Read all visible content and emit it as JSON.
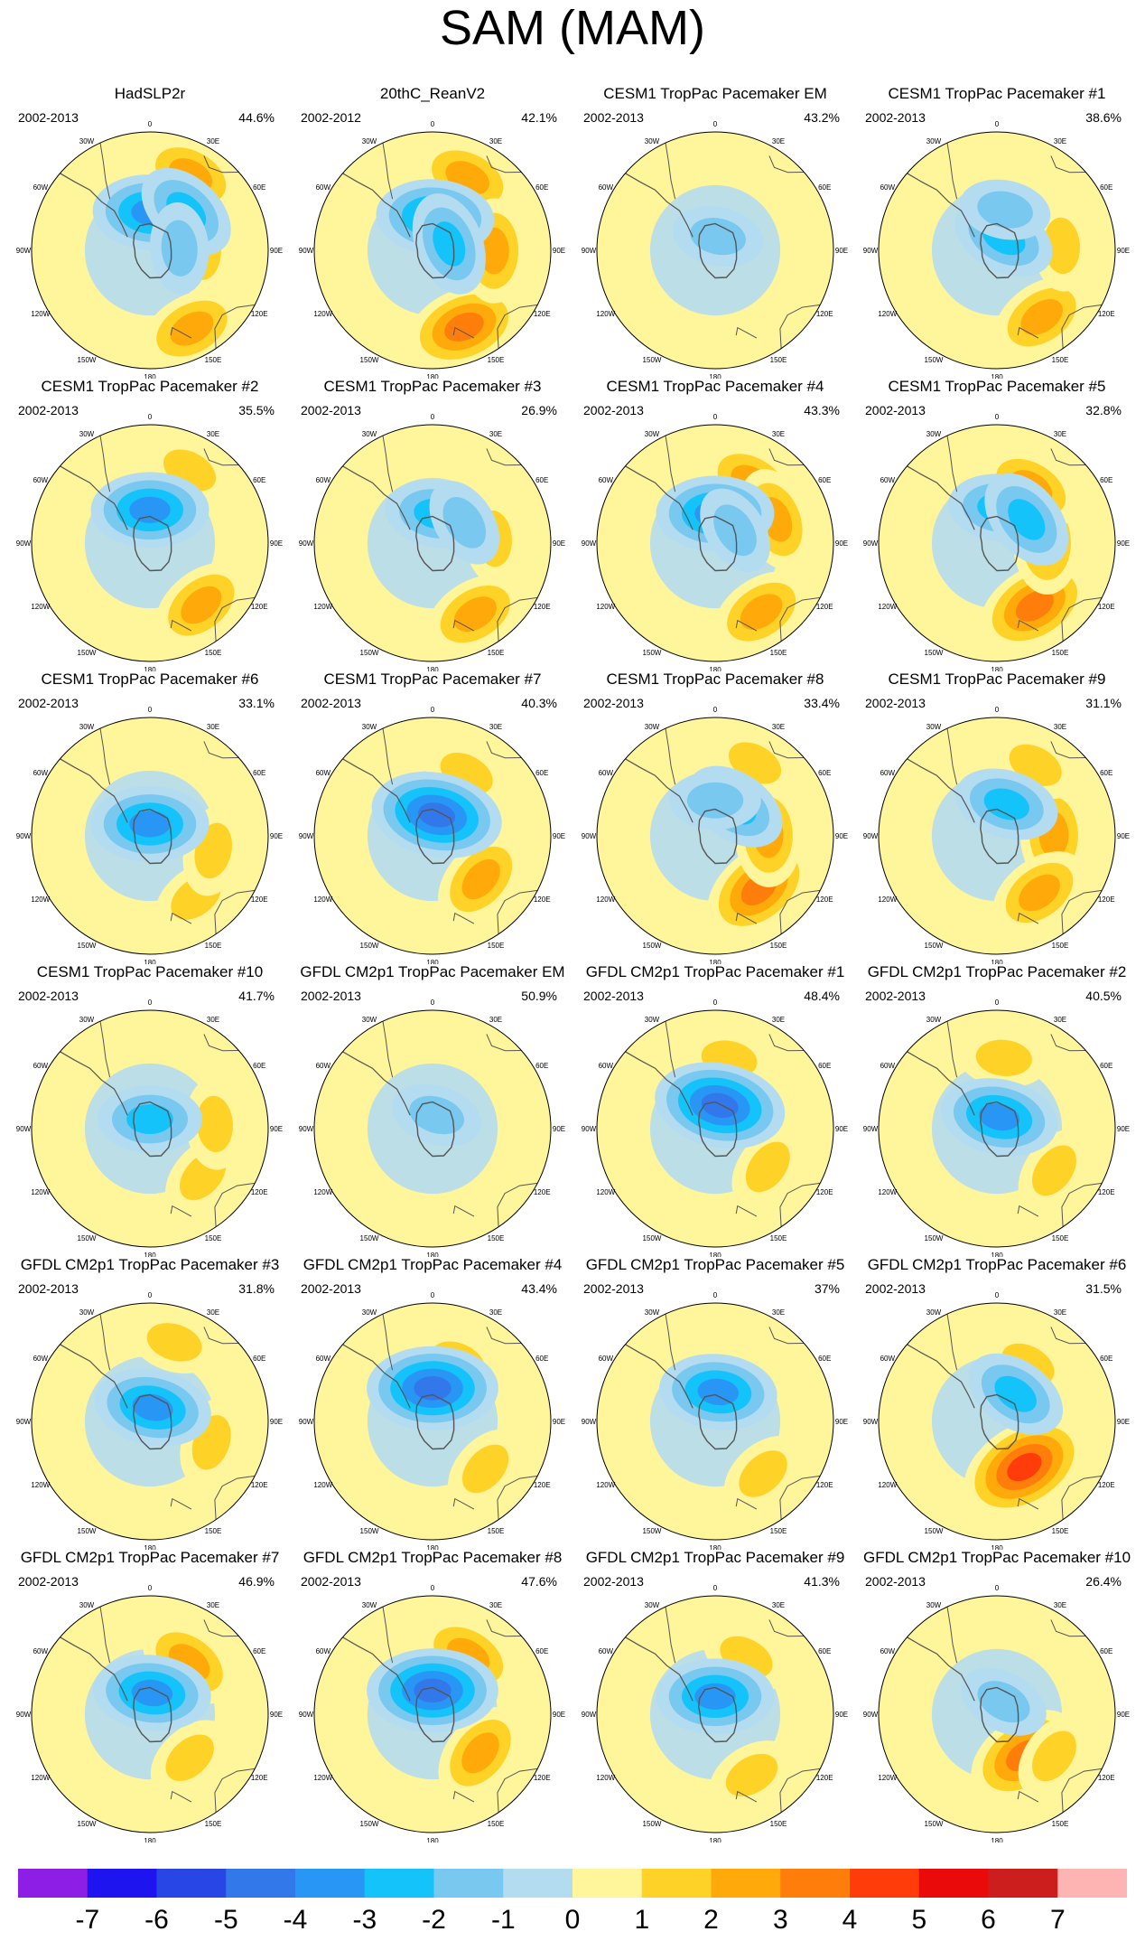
{
  "title": "SAM (MAM)",
  "panels": [
    {
      "name": "HadSLP2r",
      "period": "2002-2013",
      "percent": "44.6%"
    },
    {
      "name": "20thC_ReanV2",
      "period": "2002-2012",
      "percent": "42.1%"
    },
    {
      "name": "CESM1 TropPac Pacemaker EM",
      "period": "2002-2013",
      "percent": "43.2%"
    },
    {
      "name": "CESM1 TropPac Pacemaker #1",
      "period": "2002-2013",
      "percent": "38.6%"
    },
    {
      "name": "CESM1 TropPac Pacemaker #2",
      "period": "2002-2013",
      "percent": "35.5%"
    },
    {
      "name": "CESM1 TropPac Pacemaker #3",
      "period": "2002-2013",
      "percent": "26.9%"
    },
    {
      "name": "CESM1 TropPac Pacemaker #4",
      "period": "2002-2013",
      "percent": "43.3%"
    },
    {
      "name": "CESM1 TropPac Pacemaker #5",
      "period": "2002-2013",
      "percent": "32.8%"
    },
    {
      "name": "CESM1 TropPac Pacemaker #6",
      "period": "2002-2013",
      "percent": "33.1%"
    },
    {
      "name": "CESM1 TropPac Pacemaker #7",
      "period": "2002-2013",
      "percent": "40.3%"
    },
    {
      "name": "CESM1 TropPac Pacemaker #8",
      "period": "2002-2013",
      "percent": "33.4%"
    },
    {
      "name": "CESM1 TropPac Pacemaker #9",
      "period": "2002-2013",
      "percent": "31.1%"
    },
    {
      "name": "CESM1 TropPac Pacemaker #10",
      "period": "2002-2013",
      "percent": "41.7%"
    },
    {
      "name": "GFDL CM2p1 TropPac Pacemaker EM",
      "period": "2002-2013",
      "percent": "50.9%"
    },
    {
      "name": "GFDL CM2p1 TropPac Pacemaker #1",
      "period": "2002-2013",
      "percent": "48.4%"
    },
    {
      "name": "GFDL CM2p1 TropPac Pacemaker #2",
      "period": "2002-2013",
      "percent": "40.5%"
    },
    {
      "name": "GFDL CM2p1 TropPac Pacemaker #3",
      "period": "2002-2013",
      "percent": "31.8%"
    },
    {
      "name": "GFDL CM2p1 TropPac Pacemaker #4",
      "period": "2002-2013",
      "percent": "43.4%"
    },
    {
      "name": "GFDL CM2p1 TropPac Pacemaker #5",
      "period": "2002-2013",
      "percent": "37%"
    },
    {
      "name": "GFDL CM2p1 TropPac Pacemaker #6",
      "period": "2002-2013",
      "percent": "31.5%"
    },
    {
      "name": "GFDL CM2p1 TropPac Pacemaker #7",
      "period": "2002-2013",
      "percent": "46.9%"
    },
    {
      "name": "GFDL CM2p1 TropPac Pacemaker #8",
      "period": "2002-2013",
      "percent": "47.6%"
    },
    {
      "name": "GFDL CM2p1 TropPac Pacemaker #9",
      "period": "2002-2013",
      "percent": "41.3%"
    },
    {
      "name": "GFDL CM2p1 TropPac Pacemaker #10",
      "period": "2002-2013",
      "percent": "26.4%"
    }
  ],
  "lon_labels": [
    "0",
    "30E",
    "60E",
    "90E",
    "120E",
    "150E",
    "180",
    "150W",
    "120W",
    "90W",
    "60W",
    "30W"
  ],
  "colorbar": {
    "labels": [
      "-7",
      "-6",
      "-5",
      "-4",
      "-3",
      "-2",
      "-1",
      "0",
      "1",
      "2",
      "3",
      "4",
      "5",
      "6",
      "7"
    ],
    "colors": [
      "#8c1ee6",
      "#1e14f0",
      "#2846e6",
      "#3278eb",
      "#2896f5",
      "#14c3fa",
      "#78c8f0",
      "#b4dcf0",
      "#fff59b",
      "#ffd228",
      "#ffaa0a",
      "#ff7d0a",
      "#ff3c0a",
      "#eb0a0a",
      "#cd1e1e",
      "#ffb4b4"
    ]
  },
  "patterns": [
    {
      "neg": [
        [
          -4.0,
          0.32,
          0.05
        ],
        [
          -3.0,
          0.45,
          0.75
        ],
        [
          -2.0,
          0.25,
          1.5
        ]
      ],
      "pos": [
        [
          3.0,
          0.72,
          0.5
        ],
        [
          2.5,
          0.75,
          2.65
        ],
        [
          2.0,
          0.45,
          1.6
        ]
      ]
    },
    {
      "neg": [
        [
          -4.0,
          0.28,
          0.08
        ],
        [
          -2.5,
          0.15,
          1.2
        ]
      ],
      "pos": [
        [
          3.5,
          0.7,
          2.75
        ],
        [
          3.0,
          0.68,
          0.45
        ],
        [
          3.0,
          0.52,
          1.58
        ]
      ]
    },
    {
      "neg": [
        [
          -1.7,
          0.12,
          0.2
        ]
      ],
      "pos": [
        [
          0.5,
          0.8,
          2.0
        ]
      ]
    },
    {
      "neg": [
        [
          -3.0,
          0.12,
          0.5
        ],
        [
          -2.0,
          0.35,
          0.2
        ]
      ],
      "pos": [
        [
          2.5,
          0.68,
          2.55
        ],
        [
          2.0,
          0.55,
          1.5
        ]
      ]
    },
    {
      "neg": [
        [
          -3.5,
          0.28,
          0.0
        ]
      ],
      "pos": [
        [
          2.5,
          0.68,
          2.45
        ],
        [
          1.2,
          0.7,
          0.5
        ]
      ]
    },
    {
      "neg": [
        [
          -3.0,
          0.25,
          0.15
        ],
        [
          -1.5,
          0.32,
          1.0
        ]
      ],
      "pos": [
        [
          2.5,
          0.7,
          2.6
        ],
        [
          2.0,
          0.52,
          1.5
        ]
      ]
    },
    {
      "neg": [
        [
          -4.0,
          0.25,
          0.0
        ],
        [
          -2.0,
          0.2,
          1.0
        ]
      ],
      "pos": [
        [
          3.0,
          0.7,
          2.55
        ],
        [
          2.5,
          0.6,
          0.55
        ],
        [
          2.5,
          0.55,
          1.2
        ]
      ]
    },
    {
      "neg": [
        [
          -3.0,
          0.3,
          0.1
        ],
        [
          -2.5,
          0.32,
          0.9
        ]
      ],
      "pos": [
        [
          4.0,
          0.62,
          2.6
        ],
        [
          2.5,
          0.42,
          1.55
        ],
        [
          2.5,
          0.55,
          0.55
        ]
      ]
    },
    {
      "neg": [
        [
          -3.5,
          0.1,
          0.0
        ]
      ],
      "pos": [
        [
          2.0,
          0.65,
          2.5
        ],
        [
          1.5,
          0.55,
          1.8
        ]
      ]
    },
    {
      "neg": [
        [
          -5.0,
          0.18,
          0.2
        ]
      ],
      "pos": [
        [
          3.0,
          0.55,
          2.3
        ],
        [
          1.5,
          0.6,
          0.5
        ]
      ]
    },
    {
      "neg": [
        [
          -3.0,
          0.3,
          0.6
        ],
        [
          -2.0,
          0.3,
          0.0
        ]
      ],
      "pos": [
        [
          3.5,
          0.58,
          2.45
        ],
        [
          3.0,
          0.45,
          1.55
        ],
        [
          2.0,
          0.7,
          0.5
        ]
      ]
    },
    {
      "neg": [
        [
          -3.0,
          0.28,
          0.3
        ]
      ],
      "pos": [
        [
          3.0,
          0.48,
          1.55
        ],
        [
          2.5,
          0.6,
          2.5
        ],
        [
          2.0,
          0.68,
          0.5
        ]
      ]
    },
    {
      "neg": [
        [
          -3.0,
          0.08,
          0.0
        ]
      ],
      "pos": [
        [
          2.0,
          0.6,
          2.3
        ],
        [
          1.5,
          0.55,
          1.5
        ]
      ]
    },
    {
      "neg": [
        [
          -2.0,
          0.12,
          0.3
        ]
      ],
      "pos": [
        [
          0.5,
          0.85,
          1.6
        ]
      ]
    },
    {
      "neg": [
        [
          -5.0,
          0.2,
          0.2
        ]
      ],
      "pos": [
        [
          2.0,
          0.55,
          2.2
        ],
        [
          2.0,
          0.6,
          0.2
        ]
      ]
    },
    {
      "neg": [
        [
          -4.0,
          0.1,
          0.2
        ]
      ],
      "pos": [
        [
          2.0,
          0.6,
          0.1
        ],
        [
          1.5,
          0.6,
          2.2
        ]
      ]
    },
    {
      "neg": [
        [
          -3.5,
          0.12,
          0.2
        ]
      ],
      "pos": [
        [
          1.5,
          0.7,
          0.3
        ],
        [
          1.5,
          0.55,
          1.9
        ]
      ]
    },
    {
      "neg": [
        [
          -4.5,
          0.28,
          0.0
        ]
      ],
      "pos": [
        [
          2.0,
          0.55,
          0.4
        ],
        [
          2.0,
          0.6,
          2.3
        ]
      ]
    },
    {
      "neg": [
        [
          -4.0,
          0.25,
          0.1
        ]
      ],
      "pos": [
        [
          1.5,
          0.6,
          2.4
        ]
      ]
    },
    {
      "neg": [
        [
          -3.0,
          0.28,
          0.6
        ]
      ],
      "pos": [
        [
          5.0,
          0.45,
          2.6
        ],
        [
          2.0,
          0.55,
          0.5
        ]
      ]
    },
    {
      "neg": [
        [
          -4.0,
          0.18,
          0.1
        ]
      ],
      "pos": [
        [
          3.0,
          0.55,
          0.65
        ],
        [
          2.0,
          0.5,
          2.4
        ]
      ]
    },
    {
      "neg": [
        [
          -5.0,
          0.2,
          0.0
        ]
      ],
      "pos": [
        [
          3.0,
          0.58,
          0.55
        ],
        [
          2.5,
          0.52,
          2.25
        ]
      ]
    },
    {
      "neg": [
        [
          -4.0,
          0.15,
          0.0
        ]
      ],
      "pos": [
        [
          2.0,
          0.55,
          0.5
        ],
        [
          2.0,
          0.6,
          2.6
        ]
      ]
    },
    {
      "neg": [
        [
          -2.0,
          0.12,
          0.5
        ]
      ],
      "pos": [
        [
          3.5,
          0.42,
          2.55
        ],
        [
          2.0,
          0.6,
          2.2
        ]
      ]
    }
  ]
}
